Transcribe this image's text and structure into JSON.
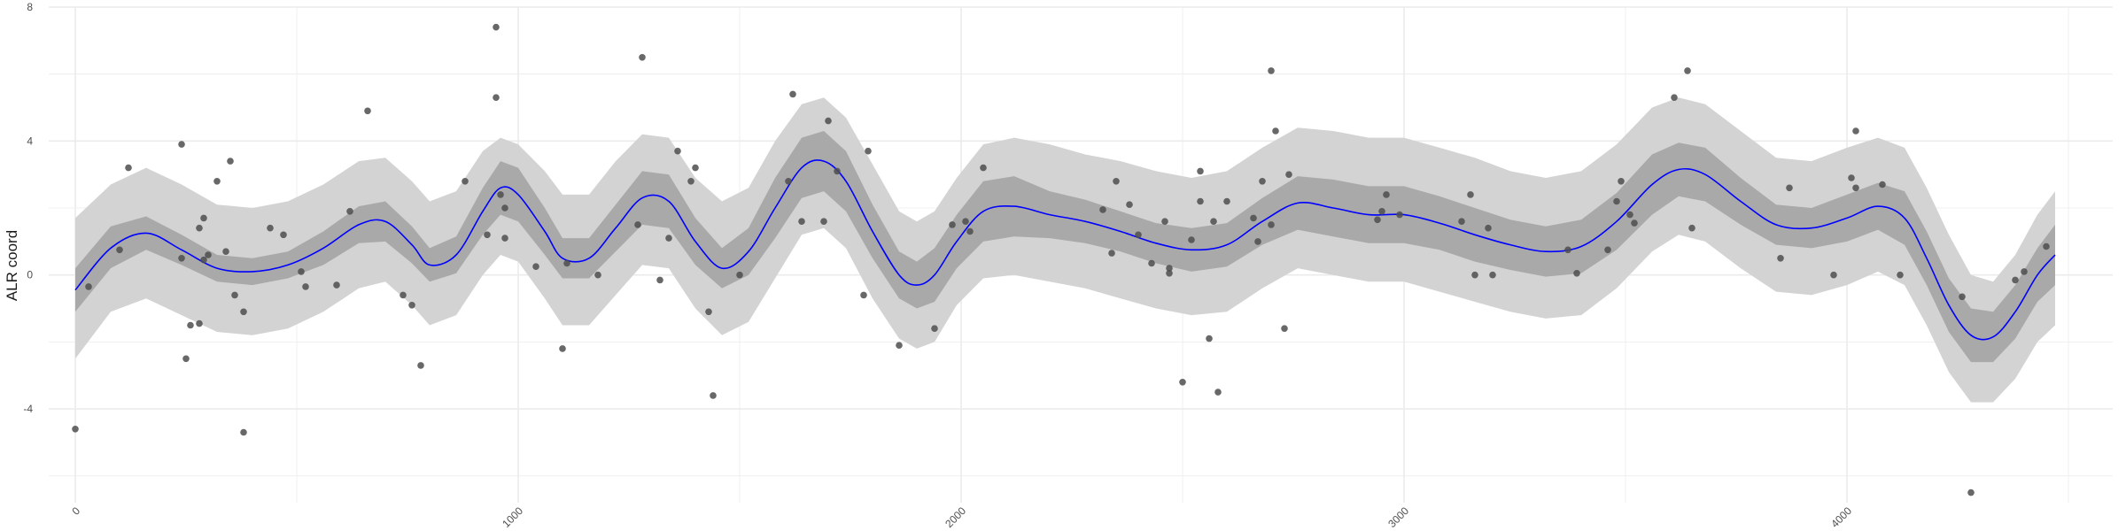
{
  "chart_data": {
    "type": "line",
    "title": "",
    "xlabel": "",
    "ylabel": "ALR coord",
    "xlim": [
      -60,
      4600
    ],
    "ylim": [
      -6.8,
      8
    ],
    "x_ticks": [
      0,
      1000,
      2000,
      3000,
      4000
    ],
    "x_tick_labels": [
      "0",
      "1000",
      "2000",
      "3000",
      "4000"
    ],
    "y_ticks": [
      -4,
      0,
      4,
      8
    ],
    "y_tick_labels": [
      "-4",
      "0",
      "4",
      "8"
    ],
    "grid": true,
    "colors": {
      "line": "#0000ff",
      "inner_band": "#a9a9a9",
      "outer_band": "#d3d3d3",
      "points": "#4d4d4d",
      "grid": "#ebebeb"
    },
    "fit": {
      "x": [
        0,
        80,
        160,
        240,
        320,
        400,
        480,
        560,
        640,
        700,
        760,
        800,
        860,
        920,
        960,
        1000,
        1060,
        1100,
        1160,
        1220,
        1280,
        1340,
        1400,
        1460,
        1520,
        1580,
        1640,
        1690,
        1740,
        1800,
        1860,
        1900,
        1940,
        1990,
        2050,
        2120,
        2200,
        2280,
        2360,
        2440,
        2520,
        2600,
        2680,
        2760,
        2840,
        2920,
        3000,
        3080,
        3160,
        3240,
        3320,
        3400,
        3480,
        3560,
        3620,
        3680,
        3760,
        3840,
        3920,
        4000,
        4070,
        4130,
        4180,
        4230,
        4280,
        4330,
        4380,
        4430,
        4470
      ],
      "y": [
        -0.45,
        0.8,
        1.25,
        0.75,
        0.2,
        0.1,
        0.3,
        0.8,
        1.5,
        1.6,
        0.9,
        0.3,
        0.6,
        1.9,
        2.6,
        2.4,
        1.3,
        0.5,
        0.5,
        1.4,
        2.3,
        2.2,
        1.0,
        0.2,
        0.7,
        2.0,
        3.2,
        3.4,
        2.8,
        1.3,
        0.0,
        -0.3,
        0.0,
        1.0,
        1.9,
        2.05,
        1.8,
        1.6,
        1.3,
        0.95,
        0.75,
        0.9,
        1.6,
        2.15,
        2.0,
        1.8,
        1.8,
        1.55,
        1.2,
        0.9,
        0.7,
        0.85,
        1.6,
        2.7,
        3.15,
        3.0,
        2.2,
        1.5,
        1.4,
        1.7,
        2.05,
        1.7,
        0.5,
        -0.9,
        -1.8,
        -1.85,
        -1.1,
        0.0,
        0.6
      ],
      "lower": [
        -1.1,
        0.2,
        0.75,
        0.3,
        -0.2,
        -0.3,
        -0.1,
        0.3,
        0.95,
        1.0,
        0.35,
        -0.2,
        0.05,
        1.2,
        1.8,
        1.6,
        0.6,
        -0.1,
        -0.1,
        0.7,
        1.5,
        1.4,
        0.3,
        -0.4,
        0.0,
        1.1,
        2.3,
        2.5,
        1.9,
        0.5,
        -0.7,
        -1.0,
        -0.8,
        0.2,
        1.0,
        1.15,
        1.1,
        0.95,
        0.7,
        0.35,
        0.1,
        0.25,
        0.9,
        1.35,
        1.15,
        0.95,
        0.95,
        0.75,
        0.4,
        0.15,
        -0.05,
        0.05,
        0.75,
        1.8,
        2.35,
        2.2,
        1.5,
        0.9,
        0.8,
        1.0,
        1.35,
        0.9,
        -0.3,
        -1.7,
        -2.6,
        -2.6,
        -1.9,
        -0.8,
        -0.3
      ],
      "upper": [
        0.2,
        1.45,
        1.75,
        1.2,
        0.6,
        0.5,
        0.7,
        1.3,
        2.05,
        2.2,
        1.45,
        0.8,
        1.15,
        2.6,
        3.4,
        3.2,
        2.0,
        1.1,
        1.1,
        2.1,
        3.1,
        3.0,
        1.7,
        0.8,
        1.4,
        2.9,
        4.1,
        4.3,
        3.7,
        2.1,
        0.7,
        0.4,
        0.8,
        1.8,
        2.8,
        2.95,
        2.5,
        2.25,
        1.9,
        1.55,
        1.4,
        1.55,
        2.3,
        2.95,
        2.85,
        2.65,
        2.65,
        2.35,
        2.0,
        1.65,
        1.45,
        1.65,
        2.45,
        3.6,
        3.95,
        3.8,
        2.9,
        2.1,
        2.0,
        2.4,
        2.75,
        2.5,
        1.3,
        -0.1,
        -1.0,
        -1.1,
        -0.3,
        0.8,
        1.5
      ],
      "pred_lower": [
        -2.5,
        -1.1,
        -0.7,
        -1.2,
        -1.7,
        -1.8,
        -1.6,
        -1.1,
        -0.4,
        -0.2,
        -0.9,
        -1.5,
        -1.2,
        0.0,
        0.6,
        0.4,
        -0.7,
        -1.5,
        -1.5,
        -0.6,
        0.3,
        0.2,
        -1.0,
        -1.8,
        -1.4,
        -0.1,
        1.2,
        1.4,
        0.8,
        -0.7,
        -1.9,
        -2.2,
        -2.0,
        -0.9,
        -0.1,
        0.0,
        -0.2,
        -0.4,
        -0.7,
        -1.0,
        -1.2,
        -1.1,
        -0.4,
        0.2,
        0.0,
        -0.2,
        -0.2,
        -0.5,
        -0.8,
        -1.1,
        -1.3,
        -1.2,
        -0.4,
        0.7,
        1.2,
        1.0,
        0.2,
        -0.5,
        -0.6,
        -0.3,
        0.1,
        -0.3,
        -1.5,
        -2.9,
        -3.8,
        -3.8,
        -3.1,
        -2.0,
        -1.5
      ],
      "pred_upper": [
        1.7,
        2.7,
        3.2,
        2.7,
        2.1,
        2.0,
        2.2,
        2.7,
        3.4,
        3.5,
        2.8,
        2.2,
        2.5,
        3.7,
        4.1,
        3.9,
        3.1,
        2.4,
        2.4,
        3.4,
        4.2,
        4.1,
        2.9,
        2.2,
        2.6,
        4.0,
        5.1,
        5.3,
        4.7,
        3.3,
        1.9,
        1.6,
        1.9,
        2.9,
        3.9,
        4.1,
        3.9,
        3.6,
        3.4,
        3.1,
        2.9,
        3.1,
        3.8,
        4.4,
        4.3,
        4.1,
        4.1,
        3.8,
        3.5,
        3.1,
        2.9,
        3.1,
        3.9,
        5.0,
        5.3,
        5.1,
        4.3,
        3.5,
        3.4,
        3.8,
        4.1,
        3.8,
        2.6,
        1.2,
        0.0,
        -0.2,
        0.6,
        1.8,
        2.5
      ]
    },
    "points": [
      [
        0,
        -4.6
      ],
      [
        30,
        -0.35
      ],
      [
        100,
        0.75
      ],
      [
        120,
        3.2
      ],
      [
        240,
        3.9
      ],
      [
        240,
        0.5
      ],
      [
        250,
        -2.5
      ],
      [
        260,
        -1.5
      ],
      [
        280,
        -1.45
      ],
      [
        280,
        1.4
      ],
      [
        290,
        1.7
      ],
      [
        290,
        0.45
      ],
      [
        300,
        0.6
      ],
      [
        320,
        2.8
      ],
      [
        340,
        0.7
      ],
      [
        350,
        3.4
      ],
      [
        360,
        -0.6
      ],
      [
        380,
        -1.1
      ],
      [
        380,
        -4.7
      ],
      [
        440,
        1.4
      ],
      [
        470,
        1.2
      ],
      [
        510,
        0.1
      ],
      [
        520,
        -0.35
      ],
      [
        590,
        -0.3
      ],
      [
        620,
        1.9
      ],
      [
        660,
        4.9
      ],
      [
        740,
        -0.6
      ],
      [
        760,
        -0.9
      ],
      [
        780,
        -2.7
      ],
      [
        880,
        2.8
      ],
      [
        930,
        1.2
      ],
      [
        950,
        5.3
      ],
      [
        950,
        7.4
      ],
      [
        960,
        2.4
      ],
      [
        970,
        2.0
      ],
      [
        970,
        1.1
      ],
      [
        1040,
        0.25
      ],
      [
        1100,
        -2.2
      ],
      [
        1110,
        0.35
      ],
      [
        1180,
        0.0
      ],
      [
        1270,
        1.5
      ],
      [
        1280,
        6.5
      ],
      [
        1320,
        -0.15
      ],
      [
        1340,
        1.1
      ],
      [
        1360,
        3.7
      ],
      [
        1390,
        2.8
      ],
      [
        1400,
        3.2
      ],
      [
        1430,
        -1.1
      ],
      [
        1440,
        -3.6
      ],
      [
        1500,
        0.0
      ],
      [
        1610,
        2.8
      ],
      [
        1620,
        5.4
      ],
      [
        1640,
        1.6
      ],
      [
        1690,
        1.6
      ],
      [
        1700,
        4.6
      ],
      [
        1720,
        3.1
      ],
      [
        1780,
        -0.6
      ],
      [
        1790,
        3.7
      ],
      [
        1860,
        -2.1
      ],
      [
        1940,
        -1.6
      ],
      [
        1980,
        1.5
      ],
      [
        2010,
        1.6
      ],
      [
        2020,
        1.3
      ],
      [
        2050,
        3.2
      ],
      [
        2320,
        1.95
      ],
      [
        2340,
        0.65
      ],
      [
        2350,
        2.8
      ],
      [
        2380,
        2.1
      ],
      [
        2400,
        1.2
      ],
      [
        2430,
        0.35
      ],
      [
        2460,
        1.6
      ],
      [
        2470,
        0.05
      ],
      [
        2470,
        0.2
      ],
      [
        2500,
        -3.2
      ],
      [
        2520,
        1.05
      ],
      [
        2540,
        2.2
      ],
      [
        2540,
        3.1
      ],
      [
        2560,
        -1.9
      ],
      [
        2570,
        1.6
      ],
      [
        2580,
        -3.5
      ],
      [
        2600,
        2.2
      ],
      [
        2660,
        1.7
      ],
      [
        2670,
        1.0
      ],
      [
        2680,
        2.8
      ],
      [
        2700,
        1.5
      ],
      [
        2700,
        6.1
      ],
      [
        2710,
        4.3
      ],
      [
        2730,
        -1.6
      ],
      [
        2740,
        3.0
      ],
      [
        2940,
        1.65
      ],
      [
        2950,
        1.9
      ],
      [
        2960,
        2.4
      ],
      [
        2990,
        1.8
      ],
      [
        3130,
        1.6
      ],
      [
        3150,
        2.4
      ],
      [
        3160,
        0.0
      ],
      [
        3190,
        1.4
      ],
      [
        3200,
        0.0
      ],
      [
        3370,
        0.75
      ],
      [
        3390,
        0.05
      ],
      [
        3460,
        0.75
      ],
      [
        3480,
        2.2
      ],
      [
        3490,
        2.8
      ],
      [
        3510,
        1.8
      ],
      [
        3520,
        1.55
      ],
      [
        3610,
        5.3
      ],
      [
        3640,
        6.1
      ],
      [
        3650,
        1.4
      ],
      [
        3850,
        0.5
      ],
      [
        3870,
        2.6
      ],
      [
        3970,
        0.0
      ],
      [
        4010,
        2.9
      ],
      [
        4020,
        4.3
      ],
      [
        4020,
        2.6
      ],
      [
        4080,
        2.7
      ],
      [
        4120,
        0.0
      ],
      [
        4260,
        -0.65
      ],
      [
        4280,
        -6.5
      ],
      [
        4380,
        -0.15
      ],
      [
        4400,
        0.1
      ],
      [
        4450,
        0.85
      ]
    ]
  }
}
